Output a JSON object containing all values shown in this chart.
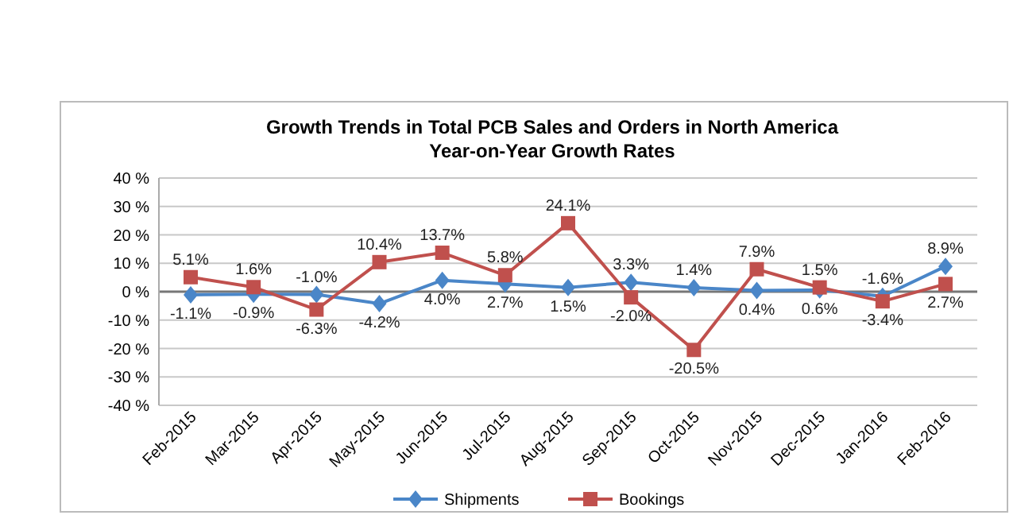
{
  "chart_data": {
    "type": "line",
    "title": "Growth Trends in Total PCB Sales and Orders in North America",
    "subtitle": "Year-on-Year Growth Rates",
    "categories": [
      "Feb-2015",
      "Mar-2015",
      "Apr-2015",
      "May-2015",
      "Jun-2015",
      "Jul-2015",
      "Aug-2015",
      "Sep-2015",
      "Oct-2015",
      "Nov-2015",
      "Dec-2015",
      "Jan-2016",
      "Feb-2016"
    ],
    "series": [
      {
        "name": "Shipments",
        "color": "#4a86c8",
        "marker": "diamond",
        "values": [
          -1.1,
          -0.9,
          -1.0,
          -4.2,
          4.0,
          2.7,
          1.5,
          3.3,
          1.4,
          0.4,
          0.6,
          -1.6,
          8.9
        ],
        "value_labels": [
          "-1.1%",
          "-0.9%",
          "-1.0%",
          "-4.2%",
          "4.0%",
          "2.7%",
          "1.5%",
          "3.3%",
          "1.4%",
          "0.4%",
          "0.6%",
          "-1.6%",
          "8.9%"
        ]
      },
      {
        "name": "Bookings",
        "color": "#c0504d",
        "marker": "square",
        "values": [
          5.1,
          1.6,
          -6.3,
          10.4,
          13.7,
          5.8,
          24.1,
          -2.0,
          -20.5,
          7.9,
          1.5,
          -3.4,
          2.7
        ],
        "value_labels": [
          "5.1%",
          "1.6%",
          "-6.3%",
          "10.4%",
          "13.7%",
          "5.8%",
          "24.1%",
          "-2.0%",
          "-20.5%",
          "7.9%",
          "1.5%",
          "-3.4%",
          "2.7%"
        ]
      }
    ],
    "ylim": [
      -40,
      40
    ],
    "yticks": [
      {
        "value": -40,
        "label": "-40 %"
      },
      {
        "value": -30,
        "label": "-30 %"
      },
      {
        "value": -20,
        "label": "-20 %"
      },
      {
        "value": -10,
        "label": "-10 %"
      },
      {
        "value": 0,
        "label": "0 %"
      },
      {
        "value": 10,
        "label": "10 %"
      },
      {
        "value": 20,
        "label": "20 %"
      },
      {
        "value": 30,
        "label": "30 %"
      },
      {
        "value": 40,
        "label": "40 %"
      }
    ],
    "grid": "y",
    "legend": "bottom",
    "line_style": "solid"
  }
}
